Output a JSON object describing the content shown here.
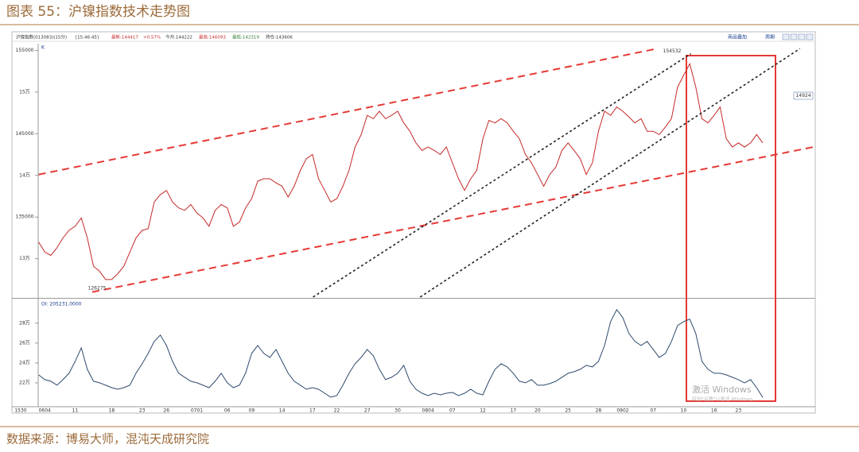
{
  "header": {
    "title": "图表 55：沪镍指数技术走势图"
  },
  "toolbar": [
    "沪镍指数(013083)(15分)",
    "[15:46:45]",
    "最新:144417",
    "+0.57%",
    "今开:144222",
    "最高:146093",
    "最低:142319",
    "持仓:143606"
  ],
  "toolbar_right": [
    "商品叠加",
    "周期"
  ],
  "source": "数据来源：博易大师，混沌天成研究院",
  "watermark": [
    "激活 Windows",
    "转到\"设置\"以激活 Windows。"
  ],
  "chart_data": [
    {
      "type": "line",
      "title": "K",
      "color": "#c62828",
      "values": [
        132000,
        130800,
        130400,
        131300,
        132500,
        133400,
        133900,
        134900,
        132500,
        129100,
        128500,
        127500,
        127500,
        128200,
        129100,
        130800,
        132500,
        133400,
        133600,
        136800,
        137700,
        138200,
        136800,
        136100,
        135800,
        136500,
        135500,
        134900,
        133900,
        135800,
        136500,
        136100,
        133900,
        134400,
        136100,
        137200,
        139300,
        139600,
        139600,
        139100,
        138700,
        137400,
        138700,
        140600,
        142000,
        142500,
        139600,
        138200,
        136800,
        137200,
        138700,
        140600,
        143400,
        144900,
        147200,
        146800,
        147700,
        146800,
        147200,
        147700,
        146300,
        145300,
        143900,
        143000,
        143400,
        143000,
        142500,
        143400,
        141500,
        139600,
        138200,
        139600,
        140600,
        144400,
        146600,
        146300,
        146800,
        146300,
        145300,
        144400,
        142500,
        141500,
        140100,
        138700,
        140100,
        141000,
        143000,
        143900,
        143000,
        142000,
        140100,
        141500,
        145300,
        147700,
        147200,
        148200,
        147700,
        147000,
        146300,
        146800,
        145300,
        145300,
        144900,
        145800,
        146800,
        150600,
        152000,
        153400,
        150600,
        146800,
        146300,
        147200,
        148200,
        144400,
        143400,
        143900,
        143400,
        143900,
        144900,
        143900
      ],
      "ylim": [
        125300,
        155800
      ],
      "yticks": [
        {
          "value": 130000,
          "label": "13万"
        },
        135000,
        {
          "value": 140000,
          "label": "14万"
        },
        145000,
        {
          "value": 150000,
          "label": "15万"
        },
        155000
      ],
      "annotations": [
        154532,
        126275
      ],
      "price_tag": "14924",
      "lines": [
        {
          "points": [
            [
              0,
              140100
            ],
            [
              101.6,
              155200
            ]
          ],
          "color": "#e53935",
          "style": "dashed"
        },
        {
          "points": [
            [
              8.8,
              126000
            ],
            [
              127.3,
              143400
            ]
          ],
          "color": "#e53935",
          "style": "dashed"
        },
        {
          "points": [
            [
              45.1,
              125400
            ],
            [
              107.2,
              154600
            ]
          ],
          "color": "#222222",
          "style": "dotted"
        },
        {
          "points": [
            [
              62.7,
              125400
            ],
            [
              125.1,
              155200
            ]
          ],
          "color": "#222222",
          "style": "dotted"
        }
      ]
    },
    {
      "type": "line",
      "title": "OI: 205231.0000",
      "color": "#2f4a6d",
      "x_start_label": "1530",
      "categories": [
        null,
        "0604",
        null,
        null,
        null,
        null,
        "11",
        null,
        null,
        null,
        null,
        null,
        "18",
        null,
        null,
        null,
        null,
        "23",
        null,
        null,
        null,
        "26",
        null,
        null,
        null,
        null,
        "0701",
        null,
        null,
        null,
        null,
        "06",
        null,
        null,
        null,
        "09",
        null,
        null,
        null,
        null,
        "14",
        null,
        null,
        null,
        null,
        "17",
        null,
        null,
        null,
        "22",
        null,
        null,
        null,
        null,
        "27",
        null,
        null,
        null,
        null,
        "30",
        null,
        null,
        null,
        null,
        "0804",
        null,
        null,
        null,
        "07",
        null,
        null,
        null,
        null,
        "12",
        null,
        null,
        null,
        null,
        "17",
        null,
        null,
        null,
        "20",
        null,
        null,
        null,
        null,
        "25",
        null,
        null,
        null,
        null,
        "28",
        null,
        null,
        null,
        "0902",
        null,
        null,
        null,
        null,
        "07",
        null,
        null,
        null,
        null,
        "10",
        null,
        null,
        null,
        null,
        "16",
        null,
        null,
        null,
        "23",
        null,
        null,
        null,
        null
      ],
      "values": [
        228000,
        223200,
        221600,
        217600,
        223200,
        229600,
        241600,
        255200,
        233600,
        221600,
        220000,
        217600,
        215200,
        213600,
        215200,
        217600,
        229600,
        239200,
        249600,
        261600,
        268000,
        257600,
        241600,
        229600,
        225600,
        221600,
        220000,
        217600,
        215200,
        221600,
        229600,
        220000,
        215200,
        217600,
        229600,
        249600,
        257600,
        249600,
        245600,
        253600,
        241600,
        229600,
        221600,
        217600,
        213600,
        215200,
        213600,
        209600,
        205600,
        207200,
        217600,
        229600,
        239200,
        245600,
        253600,
        247200,
        233600,
        223200,
        225600,
        229600,
        237600,
        221600,
        213600,
        209600,
        207200,
        209600,
        208000,
        209600,
        210400,
        207200,
        209600,
        213600,
        209600,
        208000,
        221600,
        233600,
        239200,
        236000,
        229600,
        221600,
        220000,
        223200,
        217600,
        217600,
        219200,
        221600,
        225600,
        229600,
        231200,
        233600,
        237600,
        236000,
        241600,
        257600,
        281600,
        293600,
        285600,
        269600,
        261600,
        257600,
        261600,
        253600,
        245600,
        249600,
        261600,
        277600,
        281600,
        284000,
        269600,
        241600,
        233600,
        229600,
        229600,
        228000,
        225600,
        223200,
        220000,
        223200,
        215200,
        205231
      ],
      "ylim": [
        196000,
        303000
      ],
      "yticks": [
        {
          "value": 220000,
          "label": "22万"
        },
        {
          "value": 240000,
          "label": "24万"
        },
        {
          "value": 260000,
          "label": "26万"
        },
        {
          "value": 280000,
          "label": "28万"
        }
      ]
    }
  ]
}
